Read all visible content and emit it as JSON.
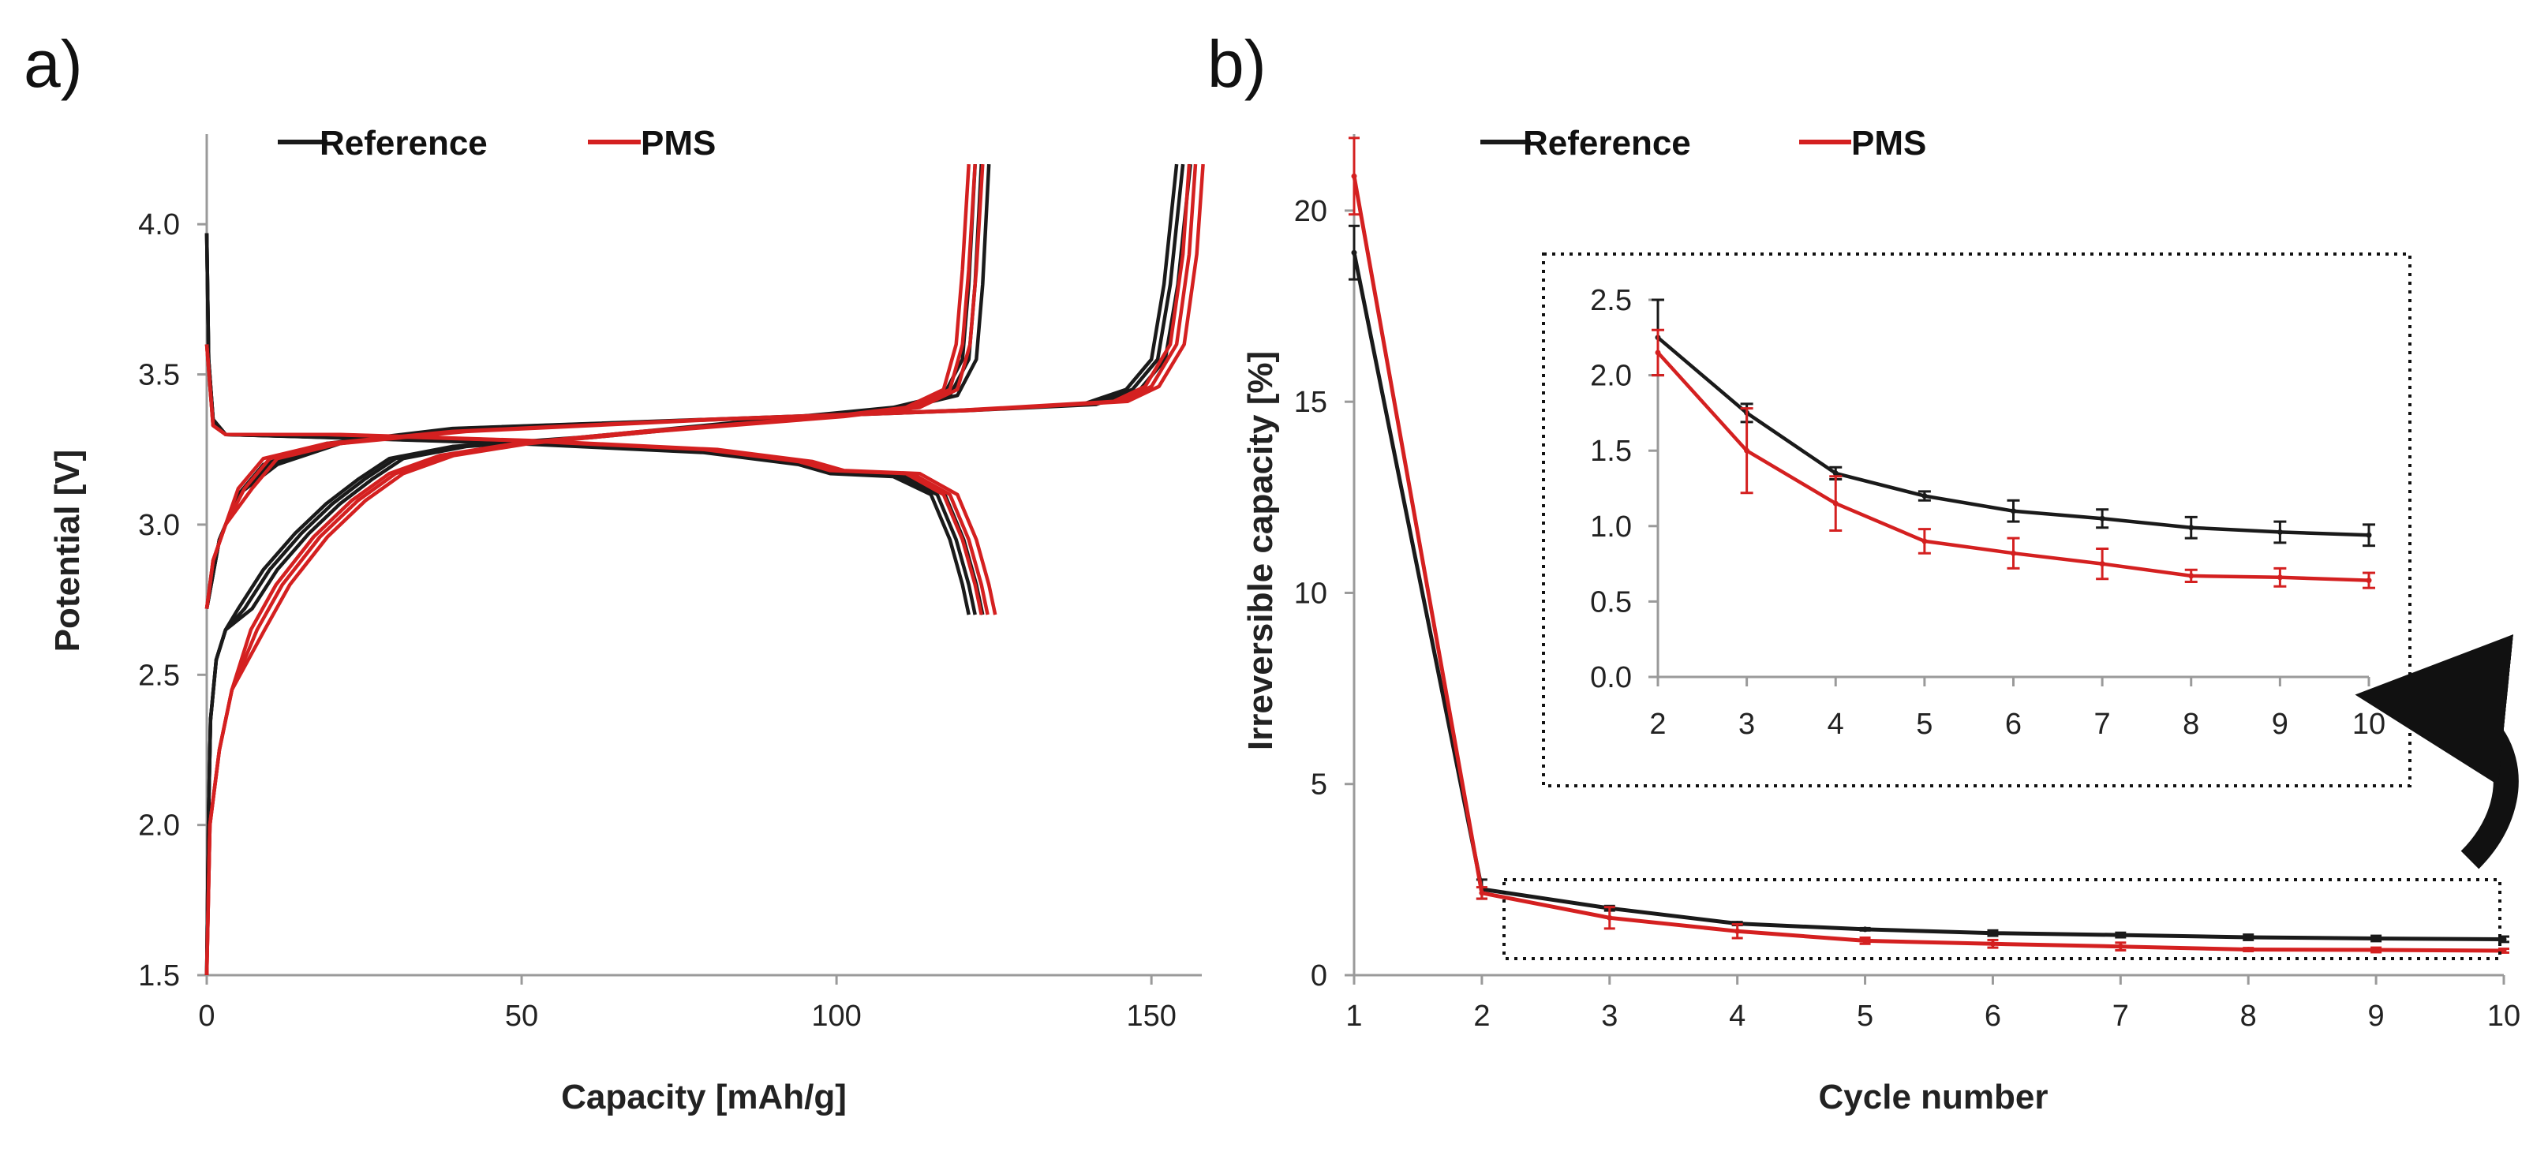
{
  "chart_data": [
    {
      "panel": "a)",
      "type": "line",
      "xlabel": "Capacity [mAh/g]",
      "ylabel": "Potential [V]",
      "xlim": [
        0,
        158
      ],
      "ylim": [
        1.5,
        4.3
      ],
      "xticks": [
        "0",
        "50",
        "100",
        "150"
      ],
      "yticks": [
        "1.5",
        "2.0",
        "2.5",
        "3.0",
        "3.5",
        "4.0"
      ],
      "legend": [
        "Reference",
        "PMS"
      ],
      "colors": {
        "Reference": "#1a1a1a",
        "PMS": "#d42020"
      },
      "series": [
        {
          "name": "Reference",
          "curve": "first-charge",
          "points": [
            [
              0,
              1.5
            ],
            [
              0.3,
              2.05
            ],
            [
              0.6,
              2.35
            ],
            [
              1.5,
              2.55
            ],
            [
              3,
              2.65
            ],
            [
              6,
              2.72
            ],
            [
              10,
              2.85
            ],
            [
              15,
              2.97
            ],
            [
              20,
              3.07
            ],
            [
              25,
              3.15
            ],
            [
              30,
              3.22
            ],
            [
              40,
              3.26
            ],
            [
              60,
              3.29
            ],
            [
              80,
              3.33
            ],
            [
              100,
              3.37
            ],
            [
              110,
              3.39
            ],
            [
              118,
              3.43
            ],
            [
              121,
              3.55
            ],
            [
              122,
              3.8
            ],
            [
              123,
              4.2
            ]
          ]
        },
        {
          "name": "Reference",
          "curve": "first-discharge",
          "points": [
            [
              0,
              3.97
            ],
            [
              0.3,
              3.55
            ],
            [
              1,
              3.35
            ],
            [
              3,
              3.3
            ],
            [
              20,
              3.29
            ],
            [
              50,
              3.27
            ],
            [
              80,
              3.24
            ],
            [
              95,
              3.2
            ],
            [
              100,
              3.17
            ],
            [
              110,
              3.16
            ],
            [
              116,
              3.1
            ],
            [
              119,
              2.95
            ],
            [
              121,
              2.8
            ],
            [
              122,
              2.7
            ]
          ]
        },
        {
          "name": "Reference",
          "curve": "long-charge",
          "points": [
            [
              0,
              2.72
            ],
            [
              2,
              2.95
            ],
            [
              5,
              3.1
            ],
            [
              10,
              3.2
            ],
            [
              20,
              3.27
            ],
            [
              40,
              3.32
            ],
            [
              80,
              3.35
            ],
            [
              120,
              3.38
            ],
            [
              140,
              3.4
            ],
            [
              147,
              3.45
            ],
            [
              151,
              3.55
            ],
            [
              153,
              3.8
            ],
            [
              155,
              4.2
            ]
          ]
        },
        {
          "name": "PMS",
          "curve": "first-charge",
          "points": [
            [
              0,
              1.5
            ],
            [
              0.5,
              2.0
            ],
            [
              2,
              2.25
            ],
            [
              4,
              2.45
            ],
            [
              8,
              2.65
            ],
            [
              12,
              2.8
            ],
            [
              18,
              2.96
            ],
            [
              24,
              3.08
            ],
            [
              30,
              3.17
            ],
            [
              38,
              3.23
            ],
            [
              50,
              3.27
            ],
            [
              70,
              3.31
            ],
            [
              100,
              3.36
            ],
            [
              112,
              3.39
            ],
            [
              118,
              3.45
            ],
            [
              120,
              3.6
            ],
            [
              121,
              3.85
            ],
            [
              122,
              4.2
            ]
          ]
        },
        {
          "name": "PMS",
          "curve": "first-discharge",
          "points": [
            [
              0,
              3.6
            ],
            [
              1,
              3.33
            ],
            [
              3,
              3.3
            ],
            [
              20,
              3.3
            ],
            [
              50,
              3.28
            ],
            [
              80,
              3.25
            ],
            [
              95,
              3.21
            ],
            [
              100,
              3.18
            ],
            [
              112,
              3.17
            ],
            [
              118,
              3.1
            ],
            [
              121,
              2.95
            ],
            [
              123,
              2.8
            ],
            [
              124,
              2.7
            ]
          ]
        },
        {
          "name": "PMS",
          "curve": "long-charge",
          "points": [
            [
              0,
              2.72
            ],
            [
              1,
              2.88
            ],
            [
              3,
              3.0
            ],
            [
              6,
              3.12
            ],
            [
              10,
              3.22
            ],
            [
              20,
              3.27
            ],
            [
              40,
              3.31
            ],
            [
              80,
              3.35
            ],
            [
              120,
              3.38
            ],
            [
              145,
              3.41
            ],
            [
              150,
              3.46
            ],
            [
              154,
              3.6
            ],
            [
              156,
              3.9
            ],
            [
              157,
              4.2
            ]
          ]
        }
      ]
    },
    {
      "panel": "b)",
      "type": "line",
      "xlabel": "Cycle number",
      "ylabel": "Irreversible capacity [%]",
      "xlim": [
        1,
        10
      ],
      "ylim": [
        0,
        22
      ],
      "xticks": [
        "1",
        "2",
        "3",
        "4",
        "5",
        "6",
        "7",
        "8",
        "9",
        "10"
      ],
      "yticks": [
        "0",
        "5",
        "10",
        "15",
        "20"
      ],
      "legend": [
        "Reference",
        "PMS"
      ],
      "colors": {
        "Reference": "#1a1a1a",
        "PMS": "#d42020"
      },
      "x": [
        1,
        2,
        3,
        4,
        5,
        6,
        7,
        8,
        9,
        10
      ],
      "series": [
        {
          "name": "Reference",
          "values": [
            18.9,
            2.25,
            1.75,
            1.35,
            1.2,
            1.1,
            1.05,
            0.99,
            0.96,
            0.94
          ],
          "errors": [
            0.7,
            0.25,
            0.06,
            0.04,
            0.03,
            0.07,
            0.06,
            0.07,
            0.07,
            0.07
          ]
        },
        {
          "name": "PMS",
          "values": [
            20.9,
            2.15,
            1.5,
            1.15,
            0.9,
            0.82,
            0.75,
            0.67,
            0.66,
            0.64
          ],
          "errors": [
            1.0,
            0.15,
            0.28,
            0.18,
            0.08,
            0.1,
            0.1,
            0.04,
            0.06,
            0.05
          ]
        }
      ],
      "inset": {
        "xlim": [
          2,
          10
        ],
        "ylim": [
          0,
          2.5
        ],
        "xticks": [
          "2",
          "3",
          "4",
          "5",
          "6",
          "7",
          "8",
          "9",
          "10"
        ],
        "yticks": [
          "0.0",
          "0.5",
          "1.0",
          "1.5",
          "2.0",
          "2.5"
        ]
      }
    }
  ]
}
